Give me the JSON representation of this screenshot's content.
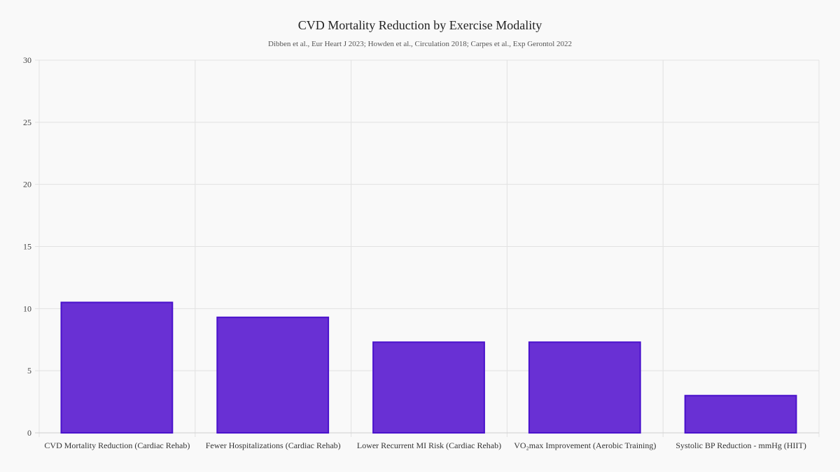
{
  "chart_data": {
    "type": "bar",
    "title": "CVD Mortality Reduction by Exercise Modality",
    "subtitle": "Dibben et al., Eur Heart J 2023; Howden et al., Circulation 2018; Carpes et al., Exp Gerontol 2022",
    "categories": [
      "CVD Mortality Reduction (Cardiac Rehab)",
      "Fewer Hospitalizations (Cardiac Rehab)",
      "Lower Recurrent MI Risk (Cardiac Rehab)",
      "VO₂max Improvement (Aerobic Training)",
      "Systolic BP Reduction - mmHg (HIIT)"
    ],
    "values": [
      10.5,
      9.3,
      7.3,
      7.3,
      3.0
    ],
    "xlabel": "",
    "ylabel": "",
    "ylim": [
      0,
      30
    ],
    "yticks": [
      0,
      5,
      10,
      15,
      20,
      25,
      30
    ],
    "grid": true,
    "legend": "none",
    "colors": {
      "fill": "#6930d4",
      "border": "#4a12cc",
      "grid": "#e2e2e2"
    }
  }
}
